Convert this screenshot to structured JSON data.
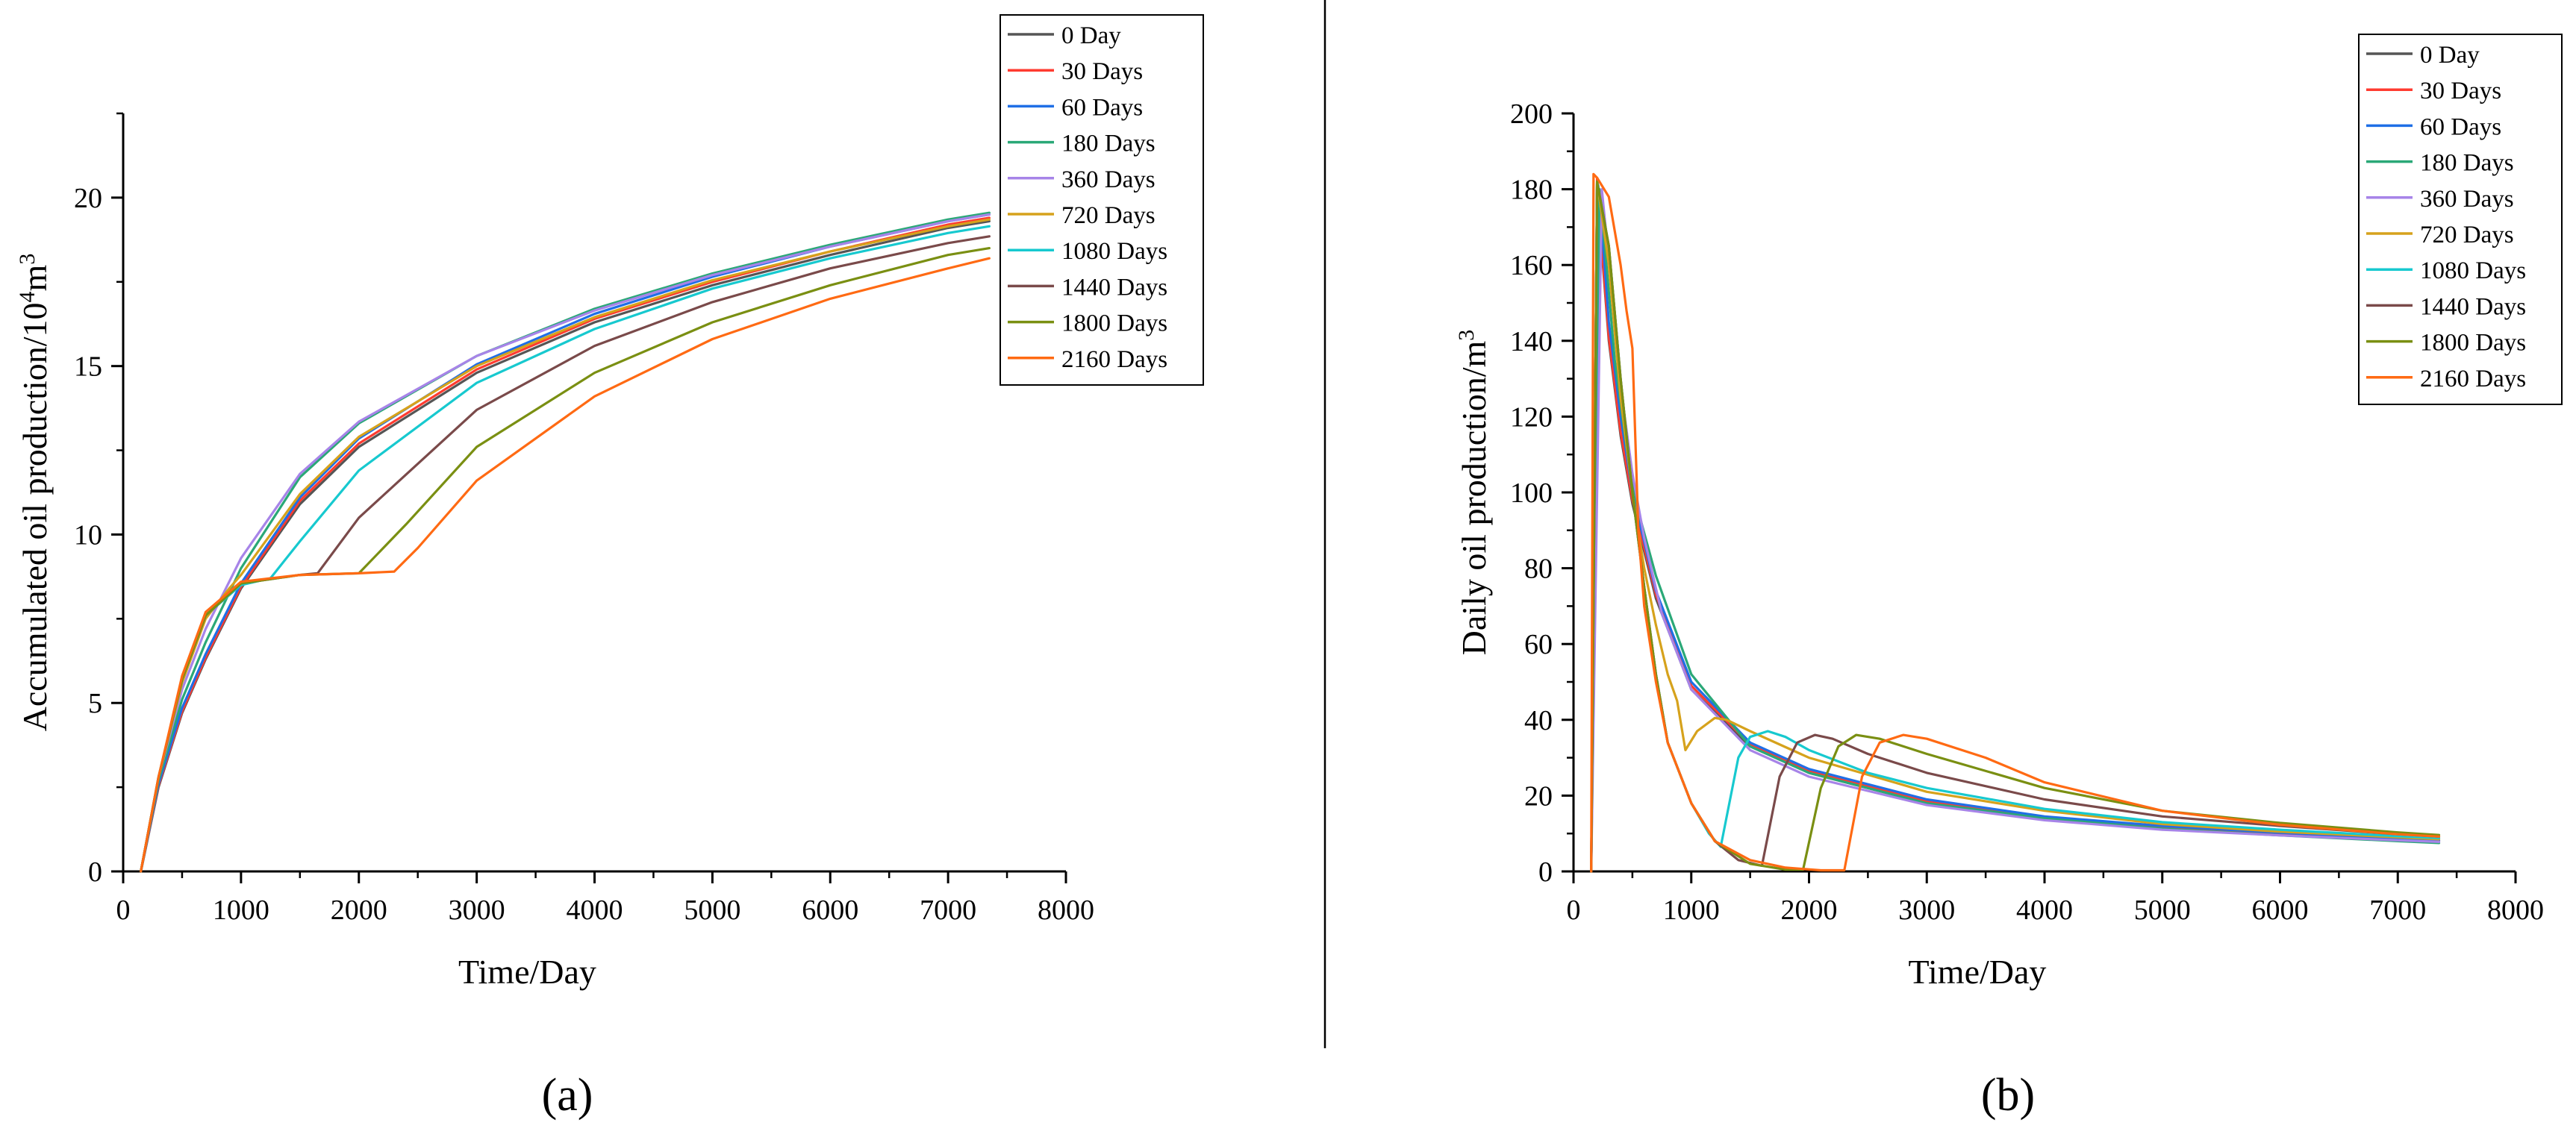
{
  "colors": {
    "0 Day": "#555555",
    "30 Days": "#ff3b30",
    "60 Days": "#1f6fe6",
    "180 Days": "#2aa877",
    "360 Days": "#a784e8",
    "720 Days": "#d6a21c",
    "1080 Days": "#17c9cf",
    "1440 Days": "#7a4a4a",
    "1800 Days": "#7a8f12",
    "2160 Days": "#ff6a13"
  },
  "chart_data": [
    {
      "type": "line",
      "panel_label": "(a)",
      "xlabel": "Time/Day",
      "ylabel_main": "Accumulated oil production/10",
      "ylabel_sup1": "4",
      "ylabel_mid": "m",
      "ylabel_sup2": "3",
      "xlim": [
        0,
        8000
      ],
      "ylim": [
        0,
        22.5
      ],
      "xticks": [
        0,
        1000,
        2000,
        3000,
        4000,
        5000,
        6000,
        7000,
        8000
      ],
      "yticks": [
        0,
        5,
        10,
        15,
        20
      ],
      "legend_position": "top-right",
      "series": [
        {
          "name": "0 Day",
          "x": [
            150,
            300,
            500,
            700,
            1000,
            1500,
            2000,
            3000,
            4000,
            5000,
            6000,
            7000,
            7350
          ],
          "values": [
            0,
            2.5,
            4.7,
            6.3,
            8.4,
            10.9,
            12.6,
            14.8,
            16.3,
            17.4,
            18.3,
            19.1,
            19.3
          ]
        },
        {
          "name": "30 Days",
          "x": [
            150,
            300,
            500,
            700,
            1000,
            1500,
            2000,
            3000,
            4000,
            5000,
            6000,
            7000,
            7350
          ],
          "values": [
            0,
            2.55,
            4.75,
            6.35,
            8.45,
            11.0,
            12.7,
            14.9,
            16.4,
            17.5,
            18.4,
            19.2,
            19.4
          ]
        },
        {
          "name": "60 Days",
          "x": [
            150,
            300,
            500,
            700,
            1000,
            1500,
            2000,
            3000,
            4000,
            5000,
            6000,
            7000,
            7350
          ],
          "values": [
            0,
            2.6,
            4.85,
            6.45,
            8.55,
            11.1,
            12.85,
            15.05,
            16.55,
            17.65,
            18.55,
            19.3,
            19.5
          ]
        },
        {
          "name": "180 Days",
          "x": [
            150,
            300,
            500,
            700,
            1000,
            1500,
            2000,
            3000,
            4000,
            5000,
            6000,
            7000,
            7350
          ],
          "values": [
            0,
            2.7,
            5.1,
            6.8,
            9.0,
            11.7,
            13.3,
            15.3,
            16.7,
            17.75,
            18.6,
            19.35,
            19.55
          ]
        },
        {
          "name": "360 Days",
          "x": [
            150,
            300,
            500,
            700,
            1000,
            1500,
            2000,
            3000,
            4000,
            5000,
            6000,
            7000,
            7350
          ],
          "values": [
            0,
            2.8,
            5.4,
            7.2,
            9.3,
            11.8,
            13.35,
            15.3,
            16.65,
            17.7,
            18.55,
            19.3,
            19.5
          ]
        },
        {
          "name": "720 Days",
          "x": [
            150,
            300,
            500,
            700,
            900,
            1000,
            1500,
            2000,
            3000,
            4000,
            5000,
            6000,
            7000,
            7350
          ],
          "values": [
            0,
            2.8,
            5.6,
            7.5,
            8.4,
            8.8,
            11.2,
            12.9,
            15.0,
            16.45,
            17.55,
            18.4,
            19.15,
            19.35
          ]
        },
        {
          "name": "1080 Days",
          "x": [
            150,
            300,
            500,
            700,
            1000,
            1250,
            1500,
            2000,
            3000,
            4000,
            5000,
            6000,
            7000,
            7350
          ],
          "values": [
            0,
            2.8,
            5.7,
            7.6,
            8.5,
            8.7,
            9.8,
            11.9,
            14.5,
            16.1,
            17.3,
            18.2,
            18.95,
            19.15
          ]
        },
        {
          "name": "1440 Days",
          "x": [
            150,
            300,
            500,
            700,
            1000,
            1500,
            1650,
            2000,
            3000,
            4000,
            5000,
            6000,
            7000,
            7350
          ],
          "values": [
            0,
            2.8,
            5.7,
            7.6,
            8.55,
            8.8,
            8.85,
            10.5,
            13.7,
            15.6,
            16.9,
            17.9,
            18.65,
            18.85
          ]
        },
        {
          "name": "1800 Days",
          "x": [
            150,
            300,
            500,
            700,
            1000,
            1500,
            2000,
            2400,
            3000,
            4000,
            5000,
            6000,
            7000,
            7350
          ],
          "values": [
            0,
            2.8,
            5.7,
            7.6,
            8.55,
            8.8,
            8.85,
            10.3,
            12.6,
            14.8,
            16.3,
            17.4,
            18.3,
            18.5
          ]
        },
        {
          "name": "2160 Days",
          "x": [
            150,
            300,
            500,
            700,
            1000,
            1500,
            2000,
            2300,
            2500,
            3000,
            4000,
            5000,
            6000,
            7000,
            7350
          ],
          "values": [
            0,
            2.8,
            5.8,
            7.7,
            8.6,
            8.8,
            8.85,
            8.9,
            9.6,
            11.6,
            14.1,
            15.8,
            17.0,
            17.9,
            18.2
          ]
        }
      ]
    },
    {
      "type": "line",
      "panel_label": "(b)",
      "xlabel": "Time/Day",
      "ylabel_main": "Daily oil production/m",
      "ylabel_sup1": "3",
      "xlim": [
        0,
        8000
      ],
      "ylim": [
        0,
        200
      ],
      "xticks": [
        0,
        1000,
        2000,
        3000,
        4000,
        5000,
        6000,
        7000,
        8000
      ],
      "yticks": [
        0,
        20,
        40,
        60,
        80,
        100,
        120,
        140,
        160,
        180,
        200
      ],
      "legend_position": "top-right",
      "series": [
        {
          "name": "0 Day",
          "x": [
            150,
            200,
            250,
            300,
            400,
            500,
            700,
            1000,
            1500,
            2000,
            3000,
            4000,
            5000,
            6000,
            7000,
            7350
          ],
          "values": [
            0,
            182,
            160,
            140,
            115,
            97,
            72,
            48,
            33,
            26,
            18,
            14,
            11.5,
            10,
            8.5,
            8
          ]
        },
        {
          "name": "30 Days",
          "x": [
            150,
            200,
            250,
            300,
            400,
            500,
            700,
            1000,
            1500,
            2000,
            3000,
            4000,
            5000,
            6000,
            7000,
            7350
          ],
          "values": [
            0,
            183,
            161,
            141,
            116,
            98,
            73,
            49,
            33.5,
            26.5,
            18.5,
            14.2,
            11.7,
            10.1,
            8.6,
            8.1
          ]
        },
        {
          "name": "60 Days",
          "x": [
            150,
            210,
            260,
            300,
            400,
            500,
            700,
            1000,
            1500,
            2000,
            3000,
            4000,
            5000,
            6000,
            7000,
            7350
          ],
          "values": [
            0,
            181,
            162,
            145,
            120,
            100,
            74,
            50,
            34,
            27,
            19,
            14.5,
            12,
            10.2,
            8.7,
            8.2
          ]
        },
        {
          "name": "180 Days",
          "x": [
            150,
            220,
            280,
            350,
            450,
            550,
            700,
            1000,
            1500,
            2000,
            3000,
            4000,
            5000,
            6000,
            7000,
            7350
          ],
          "values": [
            0,
            180,
            160,
            135,
            112,
            95,
            78,
            52,
            33,
            26,
            18,
            14,
            11.3,
            9.5,
            8,
            7.5
          ]
        },
        {
          "name": "360 Days",
          "x": [
            150,
            240,
            320,
            400,
            500,
            600,
            750,
            1000,
            1500,
            2000,
            3000,
            4000,
            5000,
            6000,
            7000,
            7350
          ],
          "values": [
            0,
            180,
            155,
            128,
            105,
            88,
            68,
            48,
            32,
            25,
            17.5,
            13.5,
            11,
            9.5,
            8.2,
            7.8
          ]
        },
        {
          "name": "720 Days",
          "x": [
            150,
            200,
            300,
            400,
            500,
            600,
            700,
            800,
            880,
            950,
            1050,
            1200,
            1300,
            1500,
            2000,
            3000,
            4000,
            5000,
            6000,
            7000,
            7350
          ],
          "values": [
            0,
            182,
            160,
            125,
            100,
            80,
            65,
            52,
            45,
            32,
            37,
            40.5,
            40,
            37,
            30,
            21,
            16,
            12.5,
            10.5,
            9,
            8.5
          ]
        },
        {
          "name": "1080 Days",
          "x": [
            150,
            200,
            300,
            400,
            500,
            600,
            700,
            800,
            1000,
            1150,
            1250,
            1400,
            1500,
            1650,
            1800,
            2000,
            2500,
            3000,
            4000,
            5000,
            6000,
            7000,
            7350
          ],
          "values": [
            0,
            182,
            165,
            130,
            100,
            75,
            52,
            34,
            18,
            10,
            6.5,
            30,
            35.5,
            37,
            35.5,
            32,
            26,
            22,
            16.5,
            13,
            11,
            9.3,
            8.8
          ]
        },
        {
          "name": "1440 Days",
          "x": [
            150,
            200,
            300,
            400,
            500,
            600,
            700,
            800,
            1000,
            1200,
            1400,
            1600,
            1750,
            1900,
            2050,
            2200,
            2500,
            3000,
            4000,
            5000,
            6000,
            7000,
            7350
          ],
          "values": [
            0,
            182,
            165,
            130,
            100,
            75,
            52,
            34,
            18,
            8,
            3,
            1.5,
            25,
            34,
            36,
            35,
            31,
            26,
            19,
            14.5,
            12,
            9.8,
            9.2
          ]
        },
        {
          "name": "1800 Days",
          "x": [
            150,
            200,
            300,
            400,
            500,
            600,
            700,
            800,
            1000,
            1200,
            1500,
            1800,
            1950,
            2100,
            2250,
            2400,
            2600,
            3000,
            4000,
            5000,
            6000,
            7000,
            7350
          ],
          "values": [
            0,
            182,
            165,
            130,
            100,
            75,
            52,
            34,
            18,
            8,
            2,
            0.5,
            0.5,
            22,
            33,
            36,
            35,
            31,
            22,
            16,
            12.8,
            10.3,
            9.6
          ]
        },
        {
          "name": "2160 Days",
          "x": [
            150,
            170,
            200,
            300,
            400,
            450,
            500,
            550,
            600,
            700,
            800,
            1000,
            1200,
            1500,
            1800,
            2100,
            2300,
            2450,
            2600,
            2800,
            3000,
            3500,
            4000,
            5000,
            6000,
            7000,
            7350
          ],
          "values": [
            0,
            184,
            183,
            178,
            160,
            148,
            138,
            90,
            70,
            50,
            34,
            18,
            8,
            3,
            1,
            0.3,
            0.3,
            25,
            34,
            36,
            35,
            30,
            23.5,
            16,
            12.3,
            9.8,
            9.2
          ]
        }
      ]
    }
  ]
}
